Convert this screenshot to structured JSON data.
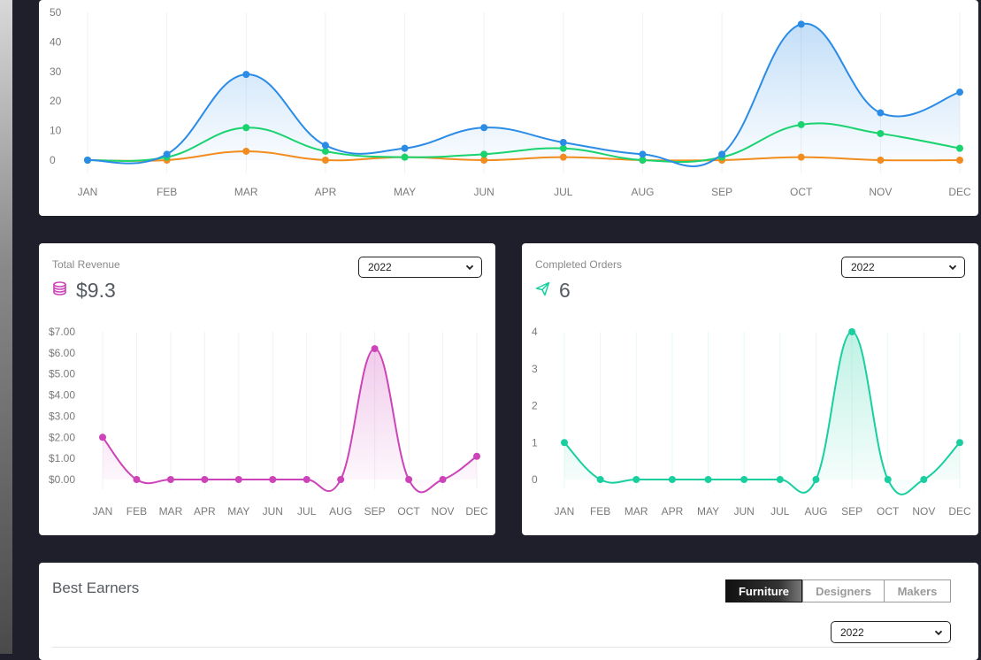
{
  "colors": {
    "page_bg": "#1e1f2a",
    "blue": "#2b8ce6",
    "green": "#19d36e",
    "orange": "#f28c1e",
    "magenta": "#cc44b8",
    "teal": "#19cfa0"
  },
  "months": [
    "JAN",
    "FEB",
    "MAR",
    "APR",
    "MAY",
    "JUN",
    "JUL",
    "AUG",
    "SEP",
    "OCT",
    "NOV",
    "DEC"
  ],
  "chart_data": [
    {
      "type": "area",
      "y_ticks": [
        "50",
        "40",
        "30",
        "20",
        "10",
        "0"
      ],
      "ylim": [
        0,
        50
      ],
      "categories": [
        "JAN",
        "FEB",
        "MAR",
        "APR",
        "MAY",
        "JUN",
        "JUL",
        "AUG",
        "SEP",
        "OCT",
        "NOV",
        "DEC"
      ],
      "series": [
        {
          "color": "#2b8ce6",
          "values": [
            0,
            2,
            29,
            5,
            4,
            11,
            6,
            2,
            2,
            46,
            16,
            23
          ]
        },
        {
          "color": "#19d36e",
          "values": [
            0,
            1,
            11,
            3,
            1,
            2,
            4,
            0,
            1,
            12,
            9,
            4
          ]
        },
        {
          "color": "#f28c1e",
          "values": [
            0,
            0,
            3,
            0,
            1,
            0,
            1,
            0,
            0,
            1,
            0,
            0
          ]
        }
      ]
    },
    {
      "type": "area",
      "title": "Total Revenue",
      "y_ticks": [
        "$7.00",
        "$6.00",
        "$5.00",
        "$4.00",
        "$3.00",
        "$2.00",
        "$1.00",
        "$0.00"
      ],
      "ylim": [
        0,
        7
      ],
      "categories": [
        "JAN",
        "FEB",
        "MAR",
        "APR",
        "MAY",
        "JUN",
        "JUL",
        "AUG",
        "SEP",
        "OCT",
        "NOV",
        "DEC"
      ],
      "series": [
        {
          "color": "#cc44b8",
          "values": [
            2,
            0,
            0,
            0,
            0,
            0,
            0,
            0,
            6.2,
            0,
            0,
            1.1
          ]
        }
      ]
    },
    {
      "type": "area",
      "title": "Completed Orders",
      "y_ticks": [
        "4",
        "3",
        "2",
        "1",
        "0"
      ],
      "ylim": [
        0,
        4
      ],
      "categories": [
        "JAN",
        "FEB",
        "MAR",
        "APR",
        "MAY",
        "JUN",
        "JUL",
        "AUG",
        "SEP",
        "OCT",
        "NOV",
        "DEC"
      ],
      "series": [
        {
          "color": "#19cfa0",
          "values": [
            1,
            0,
            0,
            0,
            0,
            0,
            0,
            0,
            4,
            0,
            0,
            1
          ]
        }
      ]
    }
  ],
  "revenue_card": {
    "title": "Total Revenue",
    "value": "$9.3",
    "icon": "coins-icon",
    "year": "2022"
  },
  "orders_card": {
    "title": "Completed Orders",
    "value": "6",
    "icon": "paper-plane-icon",
    "year": "2022"
  },
  "best_earners": {
    "title": "Best Earners",
    "tabs": [
      "Furniture",
      "Designers",
      "Makers"
    ],
    "active_tab": "Furniture",
    "year": "2022"
  }
}
